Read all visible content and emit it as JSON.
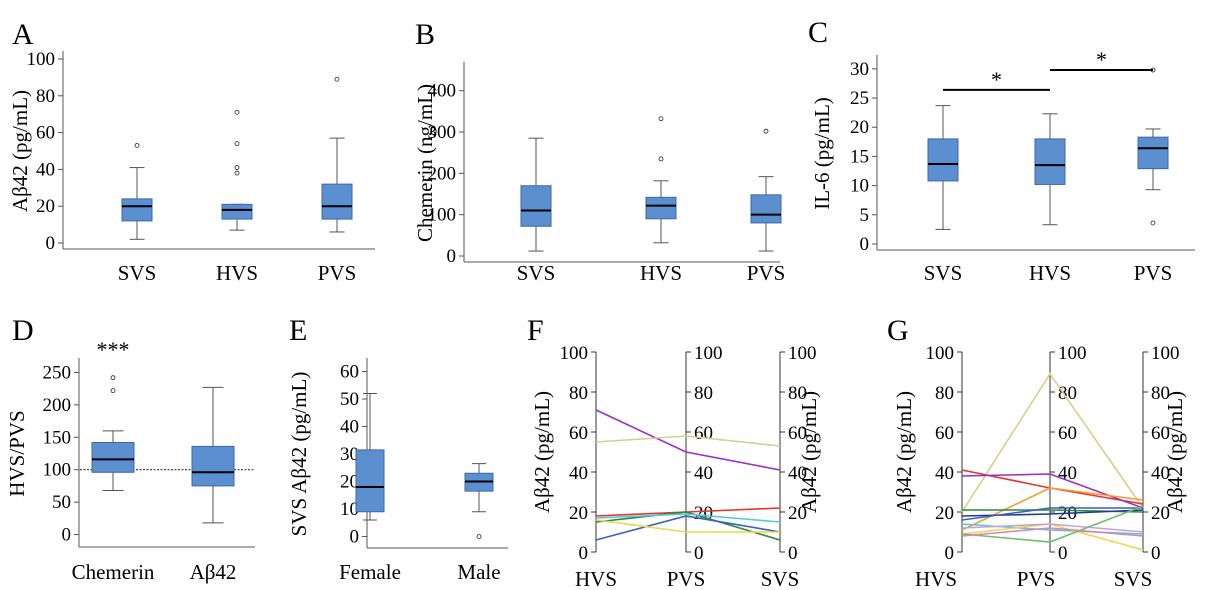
{
  "chart_data": [
    {
      "panel": "A",
      "type": "box",
      "ylabel": "Aβ42 (pg/mL)",
      "ylim": [
        0,
        100
      ],
      "yticks": [
        "0",
        "20",
        "40",
        "60",
        "80",
        "100"
      ],
      "categories": [
        "SVS",
        "HVS",
        "PVS"
      ],
      "boxes": [
        {
          "min": 2,
          "q1": 12,
          "median": 20,
          "q3": 24,
          "max": 41,
          "outliers": [
            53
          ]
        },
        {
          "min": 7,
          "q1": 13,
          "median": 18,
          "q3": 21,
          "max": 21,
          "outliers": [
            38,
            41,
            54,
            71
          ]
        },
        {
          "min": 6,
          "q1": 13,
          "median": 20,
          "q3": 32,
          "max": 57,
          "outliers": [
            89
          ]
        }
      ]
    },
    {
      "panel": "B",
      "type": "box",
      "ylabel": "Chemerin (ng/mL)",
      "ylim": [
        0,
        450
      ],
      "yticks": [
        "0",
        "100",
        "200",
        "300",
        "400"
      ],
      "categories": [
        "SVS",
        "HVS",
        "PVS"
      ],
      "boxes": [
        {
          "min": 12,
          "q1": 72,
          "median": 110,
          "q3": 170,
          "max": 285,
          "outliers": []
        },
        {
          "min": 32,
          "q1": 90,
          "median": 122,
          "q3": 142,
          "max": 182,
          "outliers": [
            235,
            332
          ]
        },
        {
          "min": 12,
          "q1": 80,
          "median": 100,
          "q3": 148,
          "max": 192,
          "outliers": [
            302
          ]
        }
      ]
    },
    {
      "panel": "C",
      "type": "box",
      "ylabel": "IL-6 (pg/mL)",
      "ylim": [
        0,
        31
      ],
      "yticks": [
        "0",
        "5",
        "10",
        "15",
        "20",
        "25",
        "30"
      ],
      "categories": [
        "SVS",
        "HVS",
        "PVS"
      ],
      "boxes": [
        {
          "min": 2.5,
          "q1": 10.8,
          "median": 13.7,
          "q3": 18,
          "max": 23.7,
          "outliers": []
        },
        {
          "min": 3.3,
          "q1": 10.2,
          "median": 13.5,
          "q3": 18,
          "max": 22.3,
          "outliers": []
        },
        {
          "min": 9.3,
          "q1": 12.9,
          "median": 16.4,
          "q3": 18.3,
          "max": 19.7,
          "outliers": [
            3.6,
            29.8
          ]
        }
      ],
      "annotations": [
        {
          "text": "*",
          "from": "SVS",
          "to": "HVS",
          "y": 26.4
        },
        {
          "text": "*",
          "from": "HVS",
          "to": "PVS",
          "y": 29.8
        }
      ]
    },
    {
      "panel": "D",
      "type": "box",
      "ylabel": "HVS/PVS",
      "ylim": [
        -10,
        260
      ],
      "yticks": [
        "0",
        "50",
        "100",
        "150",
        "200",
        "250"
      ],
      "categories": [
        "Chemerin",
        "Aβ42"
      ],
      "reference_line": 100,
      "boxes": [
        {
          "min": 68,
          "q1": 96,
          "median": 116,
          "q3": 142,
          "max": 160,
          "outliers": [
            222,
            242
          ]
        },
        {
          "min": 18,
          "q1": 75,
          "median": 96,
          "q3": 136,
          "max": 227,
          "outliers": []
        }
      ],
      "annotations": [
        {
          "text": "***",
          "target": "Chemerin"
        }
      ]
    },
    {
      "panel": "E",
      "type": "box",
      "ylabel": "SVS Aβ42 (pg/mL)",
      "ylim": [
        -2,
        62
      ],
      "yticks": [
        "0",
        "10",
        "20",
        "30",
        "40",
        "50",
        "60"
      ],
      "categories": [
        "Female",
        "Male"
      ],
      "boxes": [
        {
          "min": 6,
          "q1": 9,
          "median": 18,
          "q3": 31.5,
          "max": 52,
          "outliers": []
        },
        {
          "min": 9,
          "q1": 16.5,
          "median": 20,
          "q3": 23,
          "max": 26.5,
          "outliers": [
            0
          ]
        }
      ]
    },
    {
      "panel": "F",
      "type": "line",
      "ylabel": "Aβ42 (pg/mL)",
      "ylim": [
        0,
        100
      ],
      "yticks": [
        "0",
        "20",
        "40",
        "60",
        "80",
        "100"
      ],
      "categories": [
        "HVS",
        "PVS",
        "SVS"
      ],
      "series": [
        {
          "color": "#9a2fc4",
          "values": [
            71,
            50,
            41
          ]
        },
        {
          "color": "#d6cc95",
          "values": [
            55,
            58,
            53
          ]
        },
        {
          "color": "#e8342e",
          "values": [
            18,
            20,
            22
          ]
        },
        {
          "color": "#2c8a3a",
          "values": [
            15,
            20,
            6
          ]
        },
        {
          "color": "#3a5fc0",
          "values": [
            6,
            18,
            10
          ]
        },
        {
          "color": "#55c9d4",
          "values": [
            17,
            19,
            15
          ]
        },
        {
          "color": "#e8d84a",
          "values": [
            16,
            10,
            10
          ]
        }
      ]
    },
    {
      "panel": "G",
      "type": "line",
      "ylabel": "Aβ42 (pg/mL)",
      "ylim": [
        0,
        100
      ],
      "yticks": [
        "0",
        "20",
        "40",
        "60",
        "80",
        "100"
      ],
      "categories": [
        "HVS",
        "PVS",
        "SVS"
      ],
      "series": [
        {
          "color": "#d6d08a",
          "values": [
            20,
            89,
            22
          ]
        },
        {
          "color": "#e8342e",
          "values": [
            41,
            32,
            24
          ]
        },
        {
          "color": "#9a2fc4",
          "values": [
            38,
            39,
            22
          ]
        },
        {
          "color": "#f0a030",
          "values": [
            11,
            32,
            26
          ]
        },
        {
          "color": "#2c8a3a",
          "values": [
            21,
            21,
            20
          ]
        },
        {
          "color": "#1f3a8a",
          "values": [
            18,
            19,
            21
          ]
        },
        {
          "color": "#3a5fc0",
          "values": [
            16,
            22,
            22
          ]
        },
        {
          "color": "#55c9d4",
          "values": [
            14,
            11,
            9
          ]
        },
        {
          "color": "#e8d84a",
          "values": [
            9,
            14,
            1
          ]
        },
        {
          "color": "#c8a0d8",
          "values": [
            12,
            14,
            10
          ]
        },
        {
          "color": "#6ac06a",
          "values": [
            9,
            5,
            23
          ]
        },
        {
          "color": "#e07fb8",
          "values": [
            8,
            12,
            8
          ]
        }
      ]
    }
  ]
}
